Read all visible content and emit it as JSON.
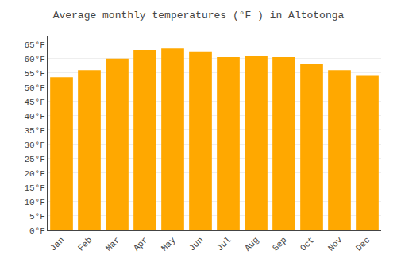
{
  "chart_data": {
    "type": "bar",
    "title": "Average monthly temperatures (°F ) in Altotonga",
    "categories": [
      "Jan",
      "Feb",
      "Mar",
      "Apr",
      "May",
      "Jun",
      "Jul",
      "Aug",
      "Sep",
      "Oct",
      "Nov",
      "Dec"
    ],
    "values": [
      53.5,
      56.0,
      60.0,
      63.0,
      63.5,
      62.5,
      60.5,
      61.0,
      60.5,
      58.0,
      56.0,
      54.0
    ],
    "color": "#FFA800",
    "ylim": [
      0,
      68
    ],
    "yticks": [
      {
        "value": 0,
        "label": "0°F"
      },
      {
        "value": 5,
        "label": "5°F"
      },
      {
        "value": 10,
        "label": "10°F"
      },
      {
        "value": 15,
        "label": "15°F"
      },
      {
        "value": 20,
        "label": "20°F"
      },
      {
        "value": 25,
        "label": "25°F"
      },
      {
        "value": 30,
        "label": "30°F"
      },
      {
        "value": 35,
        "label": "35°F"
      },
      {
        "value": 40,
        "label": "40°F"
      },
      {
        "value": 45,
        "label": "45°F"
      },
      {
        "value": 50,
        "label": "50°F"
      },
      {
        "value": 55,
        "label": "55°F"
      },
      {
        "value": 60,
        "label": "60°F"
      },
      {
        "value": 65,
        "label": "65°F"
      }
    ],
    "grid": true
  }
}
